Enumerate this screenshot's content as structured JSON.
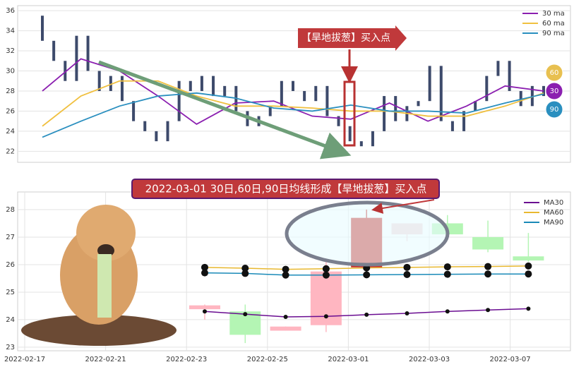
{
  "chart_data": [
    {
      "type": "candlestick",
      "open": [
        35.5,
        33,
        31,
        29,
        33.5,
        30,
        28,
        29.5,
        27,
        25,
        24,
        23,
        25,
        29,
        28,
        29.5,
        27.5,
        28.5,
        26,
        24.5,
        25.5,
        26.5,
        29,
        28,
        27,
        28.5,
        25.5,
        24.5,
        23,
        22.5,
        24,
        27.5,
        25,
        26.5,
        27,
        30.5,
        25,
        24,
        26,
        27,
        29.5,
        31,
        28,
        26.5,
        28.5
      ],
      "close": [
        33,
        31,
        29,
        33.5,
        30,
        28,
        29.5,
        27,
        25,
        24,
        23,
        25,
        29,
        28,
        29.5,
        27.5,
        28.5,
        26,
        24.5,
        25.5,
        26.5,
        29,
        28,
        27,
        28.5,
        25.5,
        24.5,
        23,
        22.5,
        24,
        27.5,
        25,
        26.5,
        27,
        30.5,
        25,
        24,
        26,
        27,
        29.5,
        31,
        28,
        26.5,
        28.5,
        27.5
      ],
      "color": "#3d4a6b",
      "series": [
        {
          "name": "30 ma",
          "color": "#8b1fb0",
          "values": [
            28,
            31.2,
            30,
            27.5,
            24.7,
            26.8,
            27,
            25.5,
            25.2,
            26.8,
            25,
            26.5,
            28.5,
            28
          ]
        },
        {
          "name": "60 ma",
          "color": "#f0c040",
          "values": [
            24.5,
            27.5,
            29,
            29,
            27.5,
            26.5,
            26.5,
            26.3,
            26,
            26,
            25.5,
            25.5,
            26.5,
            27.8
          ]
        },
        {
          "name": "90 ma",
          "color": "#2a8fbf",
          "values": [
            23.4,
            25,
            26.5,
            27.5,
            27.8,
            27.3,
            26.3,
            26,
            26.6,
            26,
            26,
            25.8,
            26.8,
            27.7
          ]
        }
      ],
      "ylim": [
        20.9,
        36.5
      ],
      "yticks": [
        22,
        24,
        26,
        28,
        30,
        32,
        34,
        36
      ],
      "grid": true,
      "annotation": "【旱地拔葱】买入点",
      "badges": [
        {
          "label": "60",
          "color": "#e8c050"
        },
        {
          "label": "30",
          "color": "#8b1fb0"
        },
        {
          "label": "90",
          "color": "#2a8fbf"
        }
      ]
    },
    {
      "type": "candlestick",
      "title": "2022-03-01 30日,60日,90日均线形成【旱地拔葱】买入点",
      "categories": [
        "2022-02-17",
        null,
        "2022-02-21",
        null,
        "2022-02-23",
        null,
        "2022-02-25",
        null,
        "2022-03-01",
        null,
        "2022-03-03",
        null,
        "2022-03-07",
        null
      ],
      "open": [
        null,
        null,
        null,
        null,
        24.52,
        24.3,
        23.75,
        23.8,
        25.9,
        27.1,
        27.1,
        26.55,
        26.15,
        null
      ],
      "close": [
        null,
        null,
        null,
        null,
        24.38,
        23.45,
        23.6,
        25.75,
        27.7,
        27.5,
        27.5,
        27.0,
        26.3,
        null
      ],
      "high": [
        null,
        null,
        null,
        null,
        24.55,
        24.55,
        23.75,
        26.1,
        28.0,
        27.5,
        27.8,
        27.6,
        27.15,
        null
      ],
      "low": [
        null,
        null,
        null,
        null,
        24.0,
        23.15,
        23.6,
        23.55,
        25.85,
        26.85,
        26.9,
        26.45,
        26.1,
        null
      ],
      "colors": [
        null,
        null,
        null,
        null,
        "#ffb6c1",
        "#b4f5b4",
        "#ffb6c1",
        "#ffb6c1",
        "#c8302c",
        "#f3d6da",
        "#b4f5b4",
        "#b4f5b4",
        "#b4f5b4",
        null
      ],
      "series": [
        {
          "name": "MA30",
          "color": "#6a0d91",
          "values": [
            null,
            null,
            null,
            null,
            24.3,
            24.2,
            24.1,
            24.12,
            24.18,
            24.23,
            24.3,
            24.35,
            24.4,
            null
          ]
        },
        {
          "name": "MA60",
          "color": "#e8b830",
          "values": [
            null,
            null,
            null,
            null,
            25.9,
            25.87,
            25.83,
            25.85,
            25.88,
            25.9,
            25.92,
            25.93,
            25.95,
            null
          ]
        },
        {
          "name": "MA90",
          "color": "#1a8ab8",
          "values": [
            null,
            null,
            null,
            null,
            25.7,
            25.68,
            25.62,
            25.62,
            25.63,
            25.64,
            25.65,
            25.66,
            25.66,
            null
          ]
        }
      ],
      "ylim": [
        22.87,
        28.64
      ],
      "yticks": [
        23,
        24,
        25,
        26,
        27,
        28
      ],
      "grid": true
    }
  ]
}
